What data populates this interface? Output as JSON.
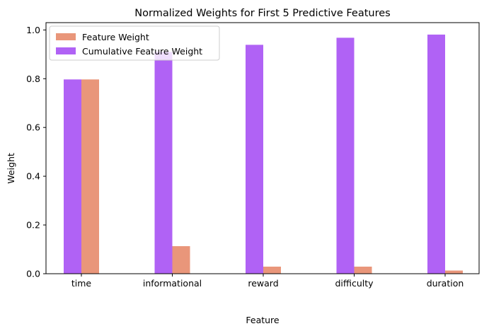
{
  "chart_data": {
    "type": "bar",
    "title": "Normalized Weights for First 5 Predictive Features",
    "xlabel": "Feature",
    "ylabel": "Weight",
    "categories": [
      "time",
      "informational",
      "reward",
      "difficulty",
      "duration"
    ],
    "series": [
      {
        "name": "Feature Weight",
        "color": "#e9967a",
        "values": [
          0.797,
          0.113,
          0.029,
          0.029,
          0.013
        ]
      },
      {
        "name": "Cumulative Feature Weight",
        "color": "#b062f5",
        "values": [
          0.797,
          0.91,
          0.939,
          0.968,
          0.981
        ]
      }
    ],
    "ylim": [
      0,
      1.03
    ],
    "yticks": [
      "0.0",
      "0.2",
      "0.4",
      "0.6",
      "0.8",
      "1.0"
    ],
    "grid": false,
    "legend_position": "top-left"
  }
}
